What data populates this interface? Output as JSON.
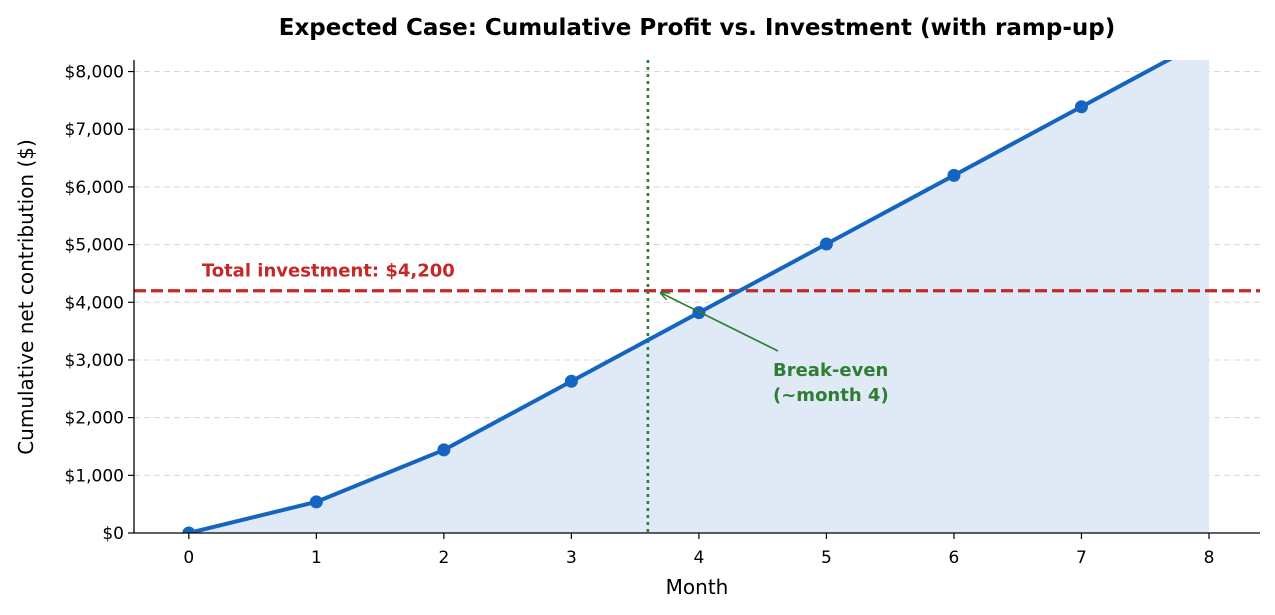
{
  "chart_data": {
    "type": "line",
    "title": "Expected Case: Cumulative Profit vs. Investment (with ramp-up)",
    "xlabel": "Month",
    "ylabel": "Cumulative net contribution ($)",
    "x": [
      0,
      1,
      2,
      3,
      4,
      5,
      6,
      7,
      8
    ],
    "series": [
      {
        "values": [
          0,
          540,
          1440,
          2630,
          3820,
          5010,
          6200,
          7390,
          8580
        ]
      }
    ],
    "xlim": [
      -0.43,
      8.4
    ],
    "ylim": [
      0,
      8200
    ],
    "x_ticks": [
      "0",
      "1",
      "2",
      "3",
      "4",
      "5",
      "6",
      "7",
      "8"
    ],
    "y_ticks": [
      {
        "value": 0,
        "label": "$0"
      },
      {
        "value": 1000,
        "label": "$1,000"
      },
      {
        "value": 2000,
        "label": "$2,000"
      },
      {
        "value": 3000,
        "label": "$3,000"
      },
      {
        "value": 4000,
        "label": "$4,000"
      },
      {
        "value": 5000,
        "label": "$5,000"
      },
      {
        "value": 6000,
        "label": "$6,000"
      },
      {
        "value": 7000,
        "label": "$7,000"
      },
      {
        "value": 8000,
        "label": "$8,000"
      }
    ],
    "grid": "horizontal dashed",
    "area_fill": true,
    "reference_lines": [
      {
        "orientation": "horizontal",
        "value": 4200,
        "style": "dashed",
        "label": "Total investment: $4,200"
      },
      {
        "orientation": "vertical",
        "value": 3.6,
        "style": "dotted"
      }
    ],
    "annotations": [
      {
        "text_lines": [
          "Break-even",
          "(~month 4)"
        ],
        "arrow_to": {
          "x": 3.7,
          "y": 4200
        }
      }
    ],
    "colors": {
      "line": "#1565c0",
      "fill": "#dfeaf6",
      "investment": "#c62828",
      "break_even": "#2e7d32",
      "grid": "#d9d9d9",
      "axis": "#000000"
    }
  }
}
